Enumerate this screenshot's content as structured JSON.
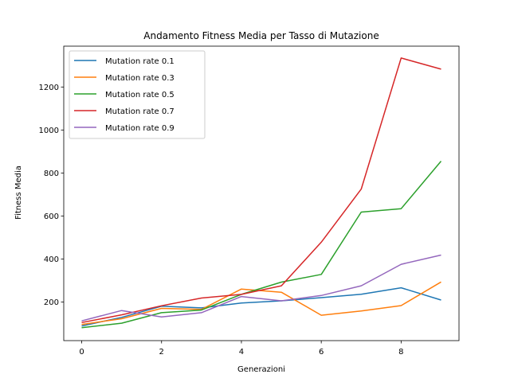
{
  "chart_data": {
    "type": "line",
    "title": "Andamento Fitness Media per Tasso di Mutazione",
    "xlabel": "Generazioni",
    "ylabel": "Fitness Media",
    "xlim": [
      -0.45,
      9.45
    ],
    "ylim": [
      20,
      1390
    ],
    "xticks": [
      0,
      2,
      4,
      6,
      8
    ],
    "yticks": [
      200,
      400,
      600,
      800,
      1000,
      1200
    ],
    "grid": false,
    "legend_position": "top-left",
    "x": [
      0,
      1,
      2,
      3,
      4,
      5,
      6,
      7,
      8,
      9
    ],
    "series": [
      {
        "name": "Mutation rate 0.1",
        "color": "#1f77b4",
        "values": [
          88,
          128,
          180,
          172,
          195,
          205,
          220,
          236,
          266,
          209
        ]
      },
      {
        "name": "Mutation rate 0.3",
        "color": "#ff7f0e",
        "values": [
          95,
          122,
          170,
          165,
          260,
          245,
          138,
          158,
          183,
          293
        ]
      },
      {
        "name": "Mutation rate 0.5",
        "color": "#2ca02c",
        "values": [
          80,
          101,
          150,
          162,
          235,
          292,
          328,
          618,
          634,
          855
        ]
      },
      {
        "name": "Mutation rate 0.7",
        "color": "#d62728",
        "values": [
          104,
          140,
          182,
          218,
          235,
          275,
          478,
          725,
          1335,
          1283
        ]
      },
      {
        "name": "Mutation rate 0.9",
        "color": "#9467bd",
        "values": [
          112,
          160,
          130,
          150,
          225,
          205,
          230,
          275,
          375,
          418
        ]
      }
    ]
  }
}
